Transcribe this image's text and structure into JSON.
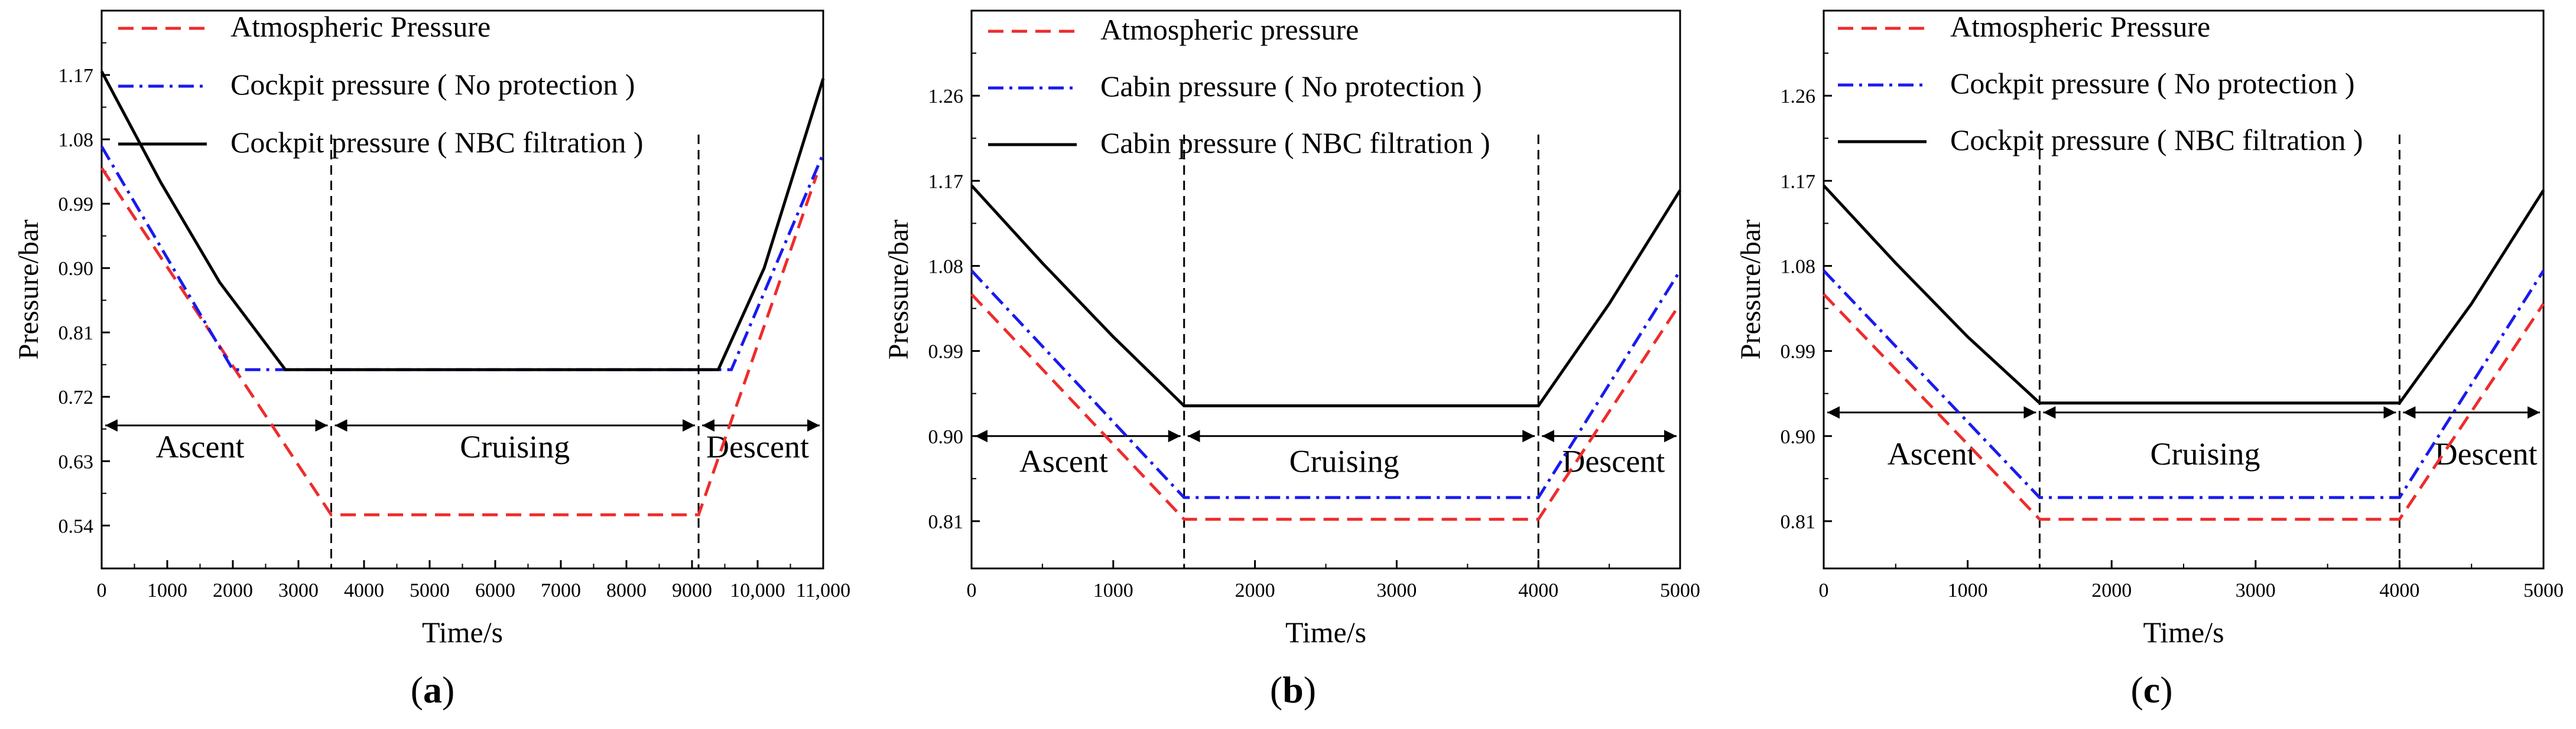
{
  "colors": {
    "atmospheric": "#ee2c2c",
    "no_protection": "#1a1aee",
    "nbc": "#000000"
  },
  "chart_data": [
    {
      "type": "line",
      "panel_label": "a",
      "xlabel": "Time/s",
      "ylabel": "Pressure/bar",
      "xlim": [
        0,
        11000
      ],
      "ylim": [
        0.48,
        1.26
      ],
      "xticks": [
        0,
        1000,
        2000,
        3000,
        4000,
        5000,
        6000,
        7000,
        8000,
        9000,
        10000,
        11000
      ],
      "xtick_labels": [
        "0",
        "1000",
        "2000",
        "3000",
        "4000",
        "5000",
        "6000",
        "7000",
        "8000",
        "9000",
        "10,000",
        "11,000"
      ],
      "yticks": [
        0.54,
        0.63,
        0.72,
        0.81,
        0.9,
        0.99,
        1.08,
        1.17
      ],
      "ytick_labels": [
        "0.54",
        "0.63",
        "0.72",
        "0.81",
        "0.90",
        "0.99",
        "1.08",
        "1.17"
      ],
      "phase_boundaries": [
        3500,
        9100
      ],
      "phase_arrow_y": 0.68,
      "phases": [
        {
          "label": "Ascent",
          "x": 1500,
          "y": 0.635
        },
        {
          "label": "Cruising",
          "x": 6300,
          "y": 0.635
        },
        {
          "label": "Descent",
          "x": 10000,
          "y": 0.635
        }
      ],
      "series": [
        {
          "key": "atmospheric",
          "name": "Atmospheric Pressure",
          "style": "dashed",
          "x": [
            0,
            3500,
            9100,
            10900
          ],
          "y": [
            1.04,
            0.555,
            0.555,
            1.03
          ]
        },
        {
          "key": "no_protection",
          "name": "Cockpit pressure ( No protection )",
          "style": "dashdot",
          "x": [
            0,
            2000,
            9600,
            11000
          ],
          "y": [
            1.07,
            0.758,
            0.758,
            1.06
          ]
        },
        {
          "key": "nbc",
          "name": "Cockpit pressure ( NBC filtration )",
          "style": "solid",
          "x": [
            0,
            900,
            1800,
            2800,
            9400,
            10100,
            11000
          ],
          "y": [
            1.175,
            1.02,
            0.88,
            0.758,
            0.758,
            0.9,
            1.165
          ]
        }
      ]
    },
    {
      "type": "line",
      "panel_label": "b",
      "xlabel": "Time/s",
      "ylabel": "Pressure/bar",
      "xlim": [
        0,
        5000
      ],
      "ylim": [
        0.76,
        1.35
      ],
      "xticks": [
        0,
        1000,
        2000,
        3000,
        4000,
        5000
      ],
      "xtick_labels": [
        "0",
        "1000",
        "2000",
        "3000",
        "4000",
        "5000"
      ],
      "yticks": [
        0.81,
        0.9,
        0.99,
        1.08,
        1.17,
        1.26
      ],
      "ytick_labels": [
        "0.81",
        "0.90",
        "0.99",
        "1.08",
        "1.17",
        "1.26"
      ],
      "phase_boundaries": [
        1500,
        4000
      ],
      "phase_arrow_y": 0.9,
      "phases": [
        {
          "label": "Ascent",
          "x": 650,
          "y": 0.862
        },
        {
          "label": "Cruising",
          "x": 2630,
          "y": 0.862
        },
        {
          "label": "Descent",
          "x": 4530,
          "y": 0.862
        }
      ],
      "series": [
        {
          "key": "atmospheric",
          "name": "Atmospheric pressure",
          "style": "dashed",
          "x": [
            0,
            1500,
            4000,
            5000
          ],
          "y": [
            1.05,
            0.812,
            0.812,
            1.04
          ]
        },
        {
          "key": "no_protection",
          "name": "Cabin pressure ( No protection )",
          "style": "dashdot",
          "x": [
            0,
            1500,
            4000,
            5000
          ],
          "y": [
            1.075,
            0.835,
            0.835,
            1.075
          ]
        },
        {
          "key": "nbc",
          "name": "Cabin pressure ( NBC filtration )",
          "style": "solid",
          "x": [
            0,
            500,
            1000,
            1500,
            4000,
            4500,
            5000
          ],
          "y": [
            1.165,
            1.083,
            1.005,
            0.932,
            0.932,
            1.04,
            1.16
          ]
        }
      ]
    },
    {
      "type": "line",
      "panel_label": "c",
      "xlabel": "Time/s",
      "ylabel": "Pressure/bar",
      "xlim": [
        0,
        5000
      ],
      "ylim": [
        0.76,
        1.35
      ],
      "xticks": [
        0,
        1000,
        2000,
        3000,
        4000,
        5000
      ],
      "xtick_labels": [
        "0",
        "1000",
        "2000",
        "3000",
        "4000",
        "5000"
      ],
      "yticks": [
        0.81,
        0.9,
        0.99,
        1.08,
        1.17,
        1.26
      ],
      "ytick_labels": [
        "0.81",
        "0.90",
        "0.99",
        "1.08",
        "1.17",
        "1.26"
      ],
      "phase_boundaries": [
        1500,
        4000
      ],
      "phase_arrow_y": 0.925,
      "phases": [
        {
          "label": "Ascent",
          "x": 750,
          "y": 0.87
        },
        {
          "label": "Cruising",
          "x": 2650,
          "y": 0.87
        },
        {
          "label": "Descent",
          "x": 4600,
          "y": 0.87
        }
      ],
      "series": [
        {
          "key": "atmospheric",
          "name": "Atmospheric Pressure",
          "style": "dashed",
          "x": [
            0,
            1500,
            4000,
            5000
          ],
          "y": [
            1.05,
            0.812,
            0.812,
            1.04
          ]
        },
        {
          "key": "no_protection",
          "name": "Cockpit pressure ( No protection )",
          "style": "dashdot",
          "x": [
            0,
            1500,
            4000,
            5000
          ],
          "y": [
            1.075,
            0.835,
            0.835,
            1.075
          ]
        },
        {
          "key": "nbc",
          "name": "Cockpit pressure ( NBC filtration )",
          "style": "solid",
          "x": [
            0,
            500,
            1000,
            1500,
            4000,
            4500,
            5000
          ],
          "y": [
            1.165,
            1.083,
            1.005,
            0.935,
            0.935,
            1.04,
            1.16
          ]
        }
      ]
    }
  ]
}
